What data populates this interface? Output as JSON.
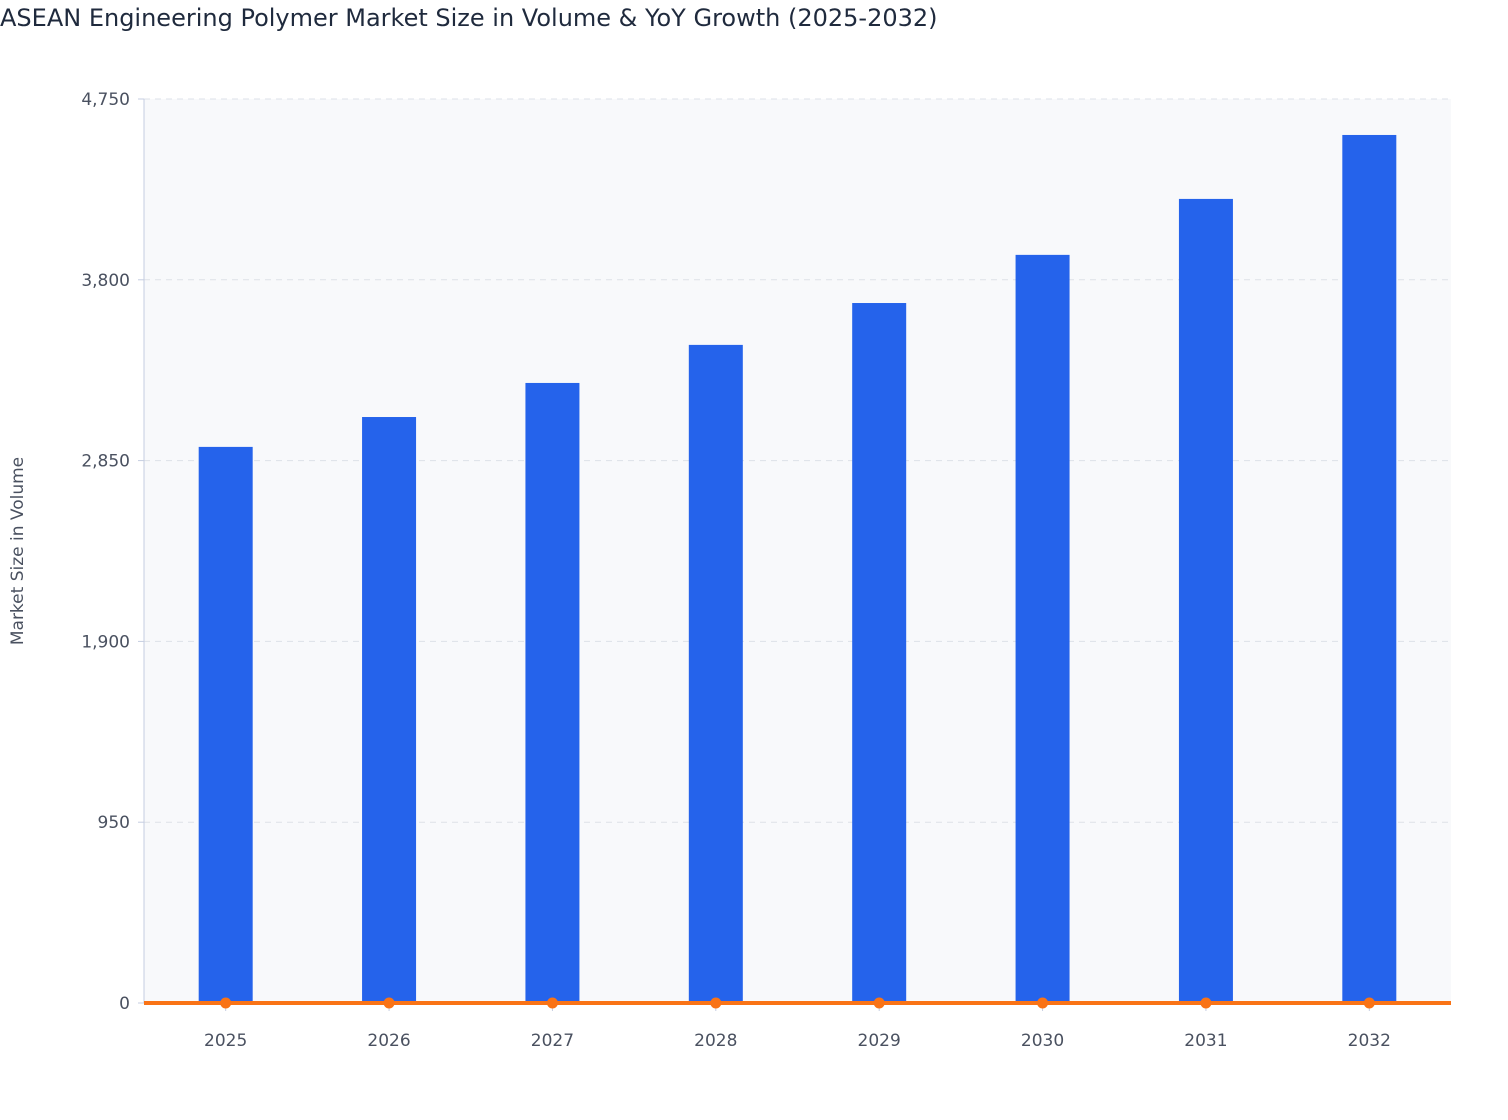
{
  "chart_data": {
    "type": "bar",
    "title": "ASEAN Engineering Polymer Market Size in Volume & YoY Growth (2025-2032)",
    "xlabel": "",
    "ylabel": "Market Size in Volume",
    "ylim": [
      0,
      4750
    ],
    "yticks": [
      0,
      950,
      1900,
      2850,
      3800,
      4750
    ],
    "ytick_labels": [
      "0",
      "950",
      "1,900",
      "2,850",
      "3,800",
      "4,750"
    ],
    "categories": [
      "2025",
      "2026",
      "2027",
      "2028",
      "2029",
      "2030",
      "2031",
      "2032"
    ],
    "grid": true,
    "series": [
      {
        "name": "Market Size in Volume",
        "type": "bar",
        "color": "#2563eb",
        "values": [
          2922,
          3079,
          3258,
          3458,
          3678,
          3931,
          4225,
          4561
        ]
      },
      {
        "name": "YoY Growth",
        "type": "line",
        "color": "#f97316",
        "values": [
          0,
          0,
          0,
          0,
          0,
          0,
          0,
          0
        ]
      }
    ]
  }
}
